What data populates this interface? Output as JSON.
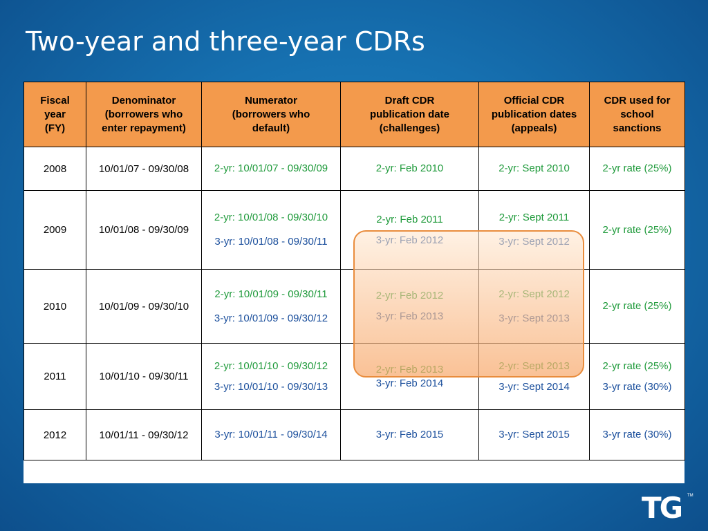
{
  "slide": {
    "title": "Two-year and three-year CDRs",
    "logo_text": "TG",
    "logo_tm": "TM"
  },
  "table": {
    "headers": [
      [
        "Fiscal",
        "year",
        "(FY)"
      ],
      [
        "Denominator",
        "(borrowers who",
        "enter repayment)"
      ],
      [
        "Numerator",
        "(borrowers who",
        "default)"
      ],
      [
        "Draft CDR",
        "publication date",
        "(challenges)"
      ],
      [
        "Official CDR",
        "publication dates",
        "(appeals)"
      ],
      [
        "CDR used  for",
        "school",
        "sanctions"
      ]
    ],
    "rows": [
      {
        "fy": "2008",
        "denominator": "10/01/07 - 09/30/08",
        "numerator": [
          "2-yr: 10/01/07 - 09/30/09"
        ],
        "draft": [
          "2-yr: Feb 2010"
        ],
        "official": [
          "2-yr: Sept 2010"
        ],
        "sanctions": [
          "2-yr rate (25%)"
        ]
      },
      {
        "fy": "2009",
        "denominator": "10/01/08 - 09/30/09",
        "numerator": [
          "2-yr: 10/01/08 - 09/30/10",
          "3-yr: 10/01/08 - 09/30/11"
        ],
        "draft": [
          "2-yr: Feb 2011",
          "3-yr: Feb 2012"
        ],
        "official": [
          "2-yr: Sept 2011",
          "3-yr: Sept 2012"
        ],
        "sanctions": [
          "2-yr rate (25%)"
        ]
      },
      {
        "fy": "2010",
        "denominator": "10/01/09 - 09/30/10",
        "numerator": [
          "2-yr: 10/01/09 - 09/30/11",
          "3-yr: 10/01/09 - 09/30/12"
        ],
        "draft": [
          "2-yr: Feb 2012",
          "3-yr: Feb 2013"
        ],
        "official": [
          "2-yr: Sept 2012",
          "3-yr: Sept 2013"
        ],
        "sanctions": [
          "2-yr rate (25%)"
        ]
      },
      {
        "fy": "2011",
        "denominator": "10/01/10 - 09/30/11",
        "numerator": [
          "2-yr: 10/01/10 - 09/30/12",
          "3-yr: 10/01/10 - 09/30/13"
        ],
        "draft": [
          "2-yr: Feb 2013",
          "3-yr: Feb 2014"
        ],
        "official": [
          "2-yr: Sept 2013",
          "3-yr: Sept 2014"
        ],
        "sanctions": [
          "2-yr rate (25%)",
          "3-yr rate (30%)"
        ]
      },
      {
        "fy": "2012",
        "denominator": "10/01/11 - 09/30/12",
        "numerator": [
          "3-yr: 10/01/11 - 09/30/14"
        ],
        "draft": [
          "3-yr: Feb 2015"
        ],
        "official": [
          "3-yr: Sept 2015"
        ],
        "sanctions": [
          "3-yr rate (30%)"
        ]
      }
    ]
  },
  "colors": {
    "header_bg": "#f39a4c",
    "two_year_text": "#1f9a3b",
    "three_year_text": "#1b4f9c",
    "highlight_border": "#e98c3c",
    "background": "#1670b0"
  }
}
